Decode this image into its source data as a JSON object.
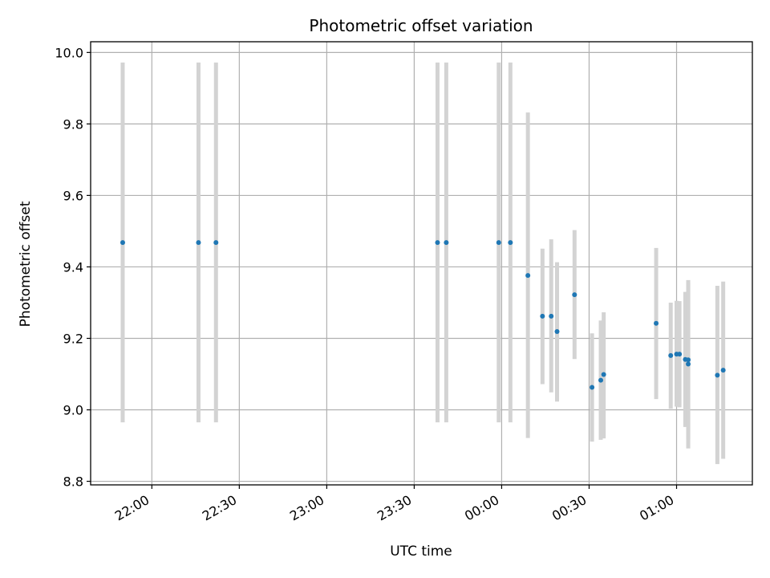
{
  "chart_data": {
    "type": "scatter",
    "title": "Photometric offset variation",
    "xlabel": "UTC time",
    "ylabel": "Photometric offset",
    "x_axis": "time",
    "xlim": [
      "21:39",
      "01:26"
    ],
    "ylim": [
      8.79,
      10.03
    ],
    "x_ticks": [
      {
        "time": "22:00",
        "label": "22:00"
      },
      {
        "time": "22:30",
        "label": "22:30"
      },
      {
        "time": "23:00",
        "label": "23:00"
      },
      {
        "time": "23:30",
        "label": "23:30"
      },
      {
        "time": "00:00",
        "label": "00:00"
      },
      {
        "time": "00:30",
        "label": "00:30"
      },
      {
        "time": "01:00",
        "label": "01:00"
      }
    ],
    "y_ticks": [
      {
        "value": 8.8,
        "label": "8.8"
      },
      {
        "value": 9.0,
        "label": "9.0"
      },
      {
        "value": 9.2,
        "label": "9.2"
      },
      {
        "value": 9.4,
        "label": "9.4"
      },
      {
        "value": 9.6,
        "label": "9.6"
      },
      {
        "value": 9.8,
        "label": "9.8"
      },
      {
        "value": 10.0,
        "label": "10.0"
      }
    ],
    "grid": true,
    "marker_color": "#1f77b4",
    "errorbar_color": "#d3d3d3",
    "points": [
      {
        "time": "21:50",
        "y": 9.468,
        "low": 8.965,
        "high": 9.972
      },
      {
        "time": "22:16",
        "y": 9.468,
        "low": 8.965,
        "high": 9.972
      },
      {
        "time": "22:22",
        "y": 9.468,
        "low": 8.965,
        "high": 9.972
      },
      {
        "time": "23:38",
        "y": 9.468,
        "low": 8.965,
        "high": 9.972
      },
      {
        "time": "23:41",
        "y": 9.468,
        "low": 8.965,
        "high": 9.972
      },
      {
        "time": "23:59",
        "y": 9.468,
        "low": 8.965,
        "high": 9.972
      },
      {
        "time": "00:03",
        "y": 9.468,
        "low": 8.965,
        "high": 9.972
      },
      {
        "time": "00:09",
        "y": 9.376,
        "low": 8.921,
        "high": 9.832
      },
      {
        "time": "00:14",
        "y": 9.262,
        "low": 9.072,
        "high": 9.451
      },
      {
        "time": "00:17",
        "y": 9.262,
        "low": 9.049,
        "high": 9.477
      },
      {
        "time": "00:19",
        "y": 9.219,
        "low": 9.023,
        "high": 9.413
      },
      {
        "time": "00:25",
        "y": 9.322,
        "low": 9.142,
        "high": 9.503
      },
      {
        "time": "00:31",
        "y": 9.063,
        "low": 8.911,
        "high": 9.214
      },
      {
        "time": "00:34",
        "y": 9.083,
        "low": 8.916,
        "high": 9.25
      },
      {
        "time": "00:35",
        "y": 9.099,
        "low": 8.92,
        "high": 9.273
      },
      {
        "time": "00:53",
        "y": 9.242,
        "low": 9.03,
        "high": 9.453
      },
      {
        "time": "00:58",
        "y": 9.152,
        "low": 9.003,
        "high": 9.3
      },
      {
        "time": "01:00",
        "y": 9.156,
        "low": 9.009,
        "high": 9.305
      },
      {
        "time": "01:01",
        "y": 9.156,
        "low": 9.007,
        "high": 9.304
      },
      {
        "time": "01:03",
        "y": 9.141,
        "low": 8.952,
        "high": 9.33
      },
      {
        "time": "01:04",
        "y": 9.14,
        "low": 8.917,
        "high": 9.363
      },
      {
        "time": "01:04",
        "y": 9.128,
        "low": 8.892,
        "high": 9.358
      },
      {
        "time": "01:14",
        "y": 9.097,
        "low": 8.848,
        "high": 9.347
      },
      {
        "time": "01:16",
        "y": 9.111,
        "low": 8.863,
        "high": 9.359
      }
    ]
  }
}
